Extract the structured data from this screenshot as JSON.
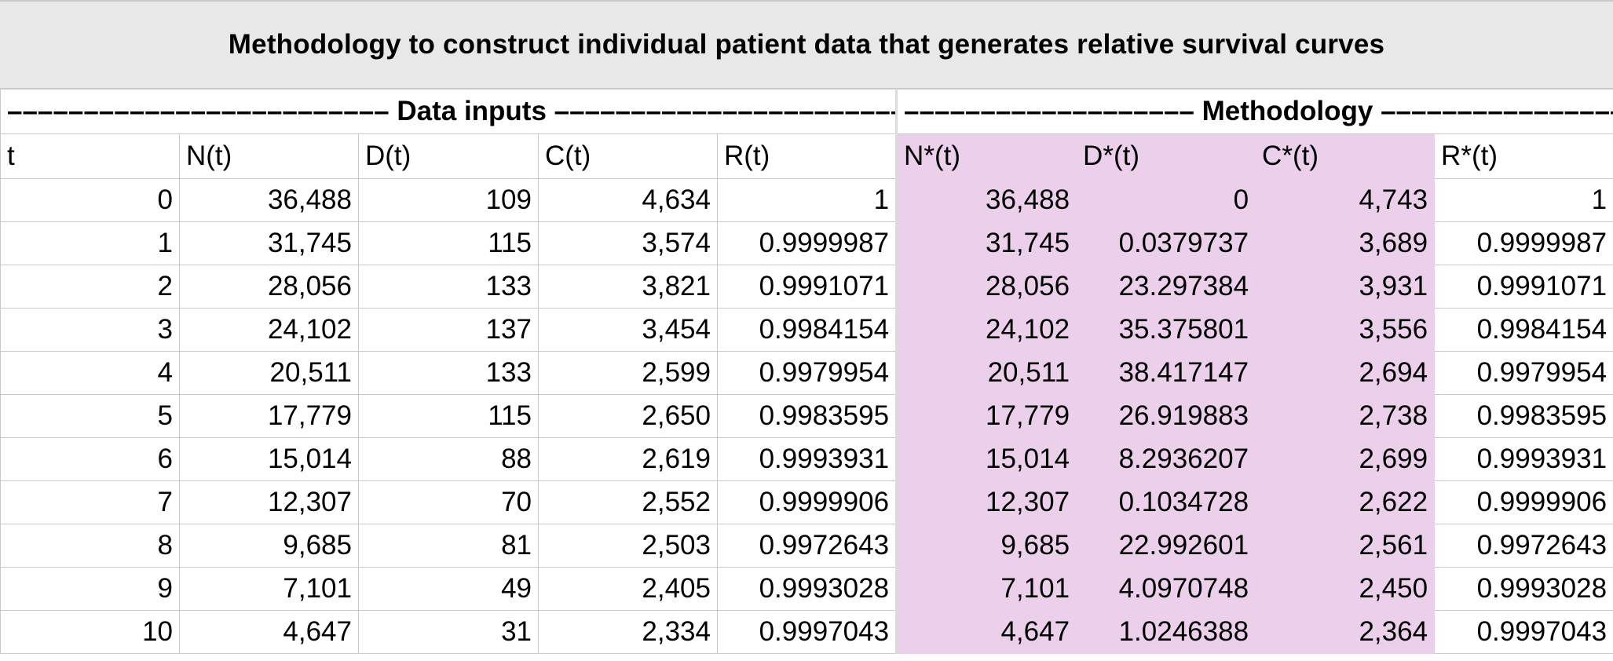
{
  "title": "Methodology to construct individual patient data that generates relative survival curves",
  "groups": {
    "data_inputs": "––––––––––––––––––––––––– Data inputs –––––––––––––––––––––––––",
    "methodology": "––––––––––––––––––– Methodology –––––––––––––––––––"
  },
  "columns": [
    "t",
    "N(t)",
    "D(t)",
    "C(t)",
    "R(t)",
    "N*(t)",
    "D*(t)",
    "C*(t)",
    "R*(t)"
  ],
  "shade_color": "#ebcfeb",
  "rows": [
    [
      "0",
      "36,488",
      "109",
      "4,634",
      "1",
      "36,488",
      "0",
      "4,743",
      "1"
    ],
    [
      "1",
      "31,745",
      "115",
      "3,574",
      "0.9999987",
      "31,745",
      "0.0379737",
      "3,689",
      "0.9999987"
    ],
    [
      "2",
      "28,056",
      "133",
      "3,821",
      "0.9991071",
      "28,056",
      "23.297384",
      "3,931",
      "0.9991071"
    ],
    [
      "3",
      "24,102",
      "137",
      "3,454",
      "0.9984154",
      "24,102",
      "35.375801",
      "3,556",
      "0.9984154"
    ],
    [
      "4",
      "20,511",
      "133",
      "2,599",
      "0.9979954",
      "20,511",
      "38.417147",
      "2,694",
      "0.9979954"
    ],
    [
      "5",
      "17,779",
      "115",
      "2,650",
      "0.9983595",
      "17,779",
      "26.919883",
      "2,738",
      "0.9983595"
    ],
    [
      "6",
      "15,014",
      "88",
      "2,619",
      "0.9993931",
      "15,014",
      "8.2936207",
      "2,699",
      "0.9993931"
    ],
    [
      "7",
      "12,307",
      "70",
      "2,552",
      "0.9999906",
      "12,307",
      "0.1034728",
      "2,622",
      "0.9999906"
    ],
    [
      "8",
      "9,685",
      "81",
      "2,503",
      "0.9972643",
      "9,685",
      "22.992601",
      "2,561",
      "0.9972643"
    ],
    [
      "9",
      "7,101",
      "49",
      "2,405",
      "0.9993028",
      "7,101",
      "4.0970748",
      "2,450",
      "0.9993028"
    ],
    [
      "10",
      "4,647",
      "31",
      "2,334",
      "0.9997043",
      "4,647",
      "1.0246388",
      "2,364",
      "0.9997043"
    ]
  ]
}
